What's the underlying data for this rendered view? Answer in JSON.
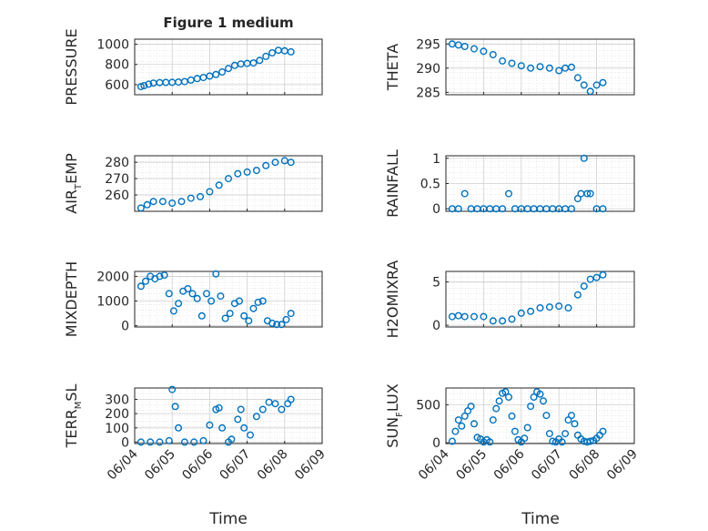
{
  "figure": {
    "title": "Figure 1 medium",
    "xlabel": "Time",
    "marker_color": "#0072bd",
    "axis_color": "#262626",
    "grid_color": "#dcdcdc"
  },
  "chart_data": [
    {
      "type": "scatter",
      "ylabel": "PRESSURE",
      "x_ticks": [],
      "y_ticks": [
        "1000",
        "800",
        "600"
      ],
      "ylim": [
        500,
        1050
      ],
      "grid": true,
      "x": [
        "06/04 04:00",
        "06/04 06:00",
        "06/04 09:00",
        "06/04 12:00",
        "06/04 16:00",
        "06/04 20:00",
        "06/05 00:00",
        "06/05 04:00",
        "06/05 08:00",
        "06/05 12:00",
        "06/05 16:00",
        "06/05 20:00",
        "06/06 00:00",
        "06/06 04:00",
        "06/06 08:00",
        "06/06 12:00",
        "06/06 16:00",
        "06/06 20:00",
        "06/07 00:00",
        "06/07 04:00",
        "06/07 08:00",
        "06/07 12:00",
        "06/07 16:00",
        "06/07 20:00",
        "06/08 00:00",
        "06/08 04:00"
      ],
      "values": [
        580,
        590,
        605,
        615,
        620,
        622,
        623,
        625,
        630,
        645,
        660,
        670,
        685,
        700,
        725,
        760,
        790,
        805,
        810,
        815,
        840,
        880,
        915,
        940,
        935,
        925
      ]
    },
    {
      "type": "scatter",
      "ylabel": "THETA",
      "x_ticks": [],
      "y_ticks": [
        "295",
        "290",
        "285"
      ],
      "ylim": [
        284.5,
        296
      ],
      "grid": true,
      "x": [
        "06/04 04:00",
        "06/04 08:00",
        "06/04 12:00",
        "06/04 18:00",
        "06/05 00:00",
        "06/05 06:00",
        "06/05 12:00",
        "06/05 18:00",
        "06/06 00:00",
        "06/06 06:00",
        "06/06 12:00",
        "06/06 18:00",
        "06/07 00:00",
        "06/07 04:00",
        "06/07 08:00",
        "06/07 12:00",
        "06/07 16:00",
        "06/07 20:00",
        "06/08 00:00",
        "06/08 04:00"
      ],
      "values": [
        295,
        294.8,
        294.5,
        294,
        293.5,
        292.8,
        291.5,
        291,
        290.5,
        290,
        290.3,
        290,
        289.5,
        290,
        290.2,
        288,
        286.5,
        285.2,
        286.5,
        287
      ]
    },
    {
      "type": "scatter",
      "ylabel": "AIR_TEMP",
      "x_ticks": [],
      "y_ticks": [
        "280",
        "270",
        "260"
      ],
      "ylim": [
        250,
        284
      ],
      "grid": true,
      "x": [
        "06/04 04:00",
        "06/04 08:00",
        "06/04 12:00",
        "06/04 18:00",
        "06/05 00:00",
        "06/05 06:00",
        "06/05 12:00",
        "06/05 18:00",
        "06/06 00:00",
        "06/06 06:00",
        "06/06 12:00",
        "06/06 18:00",
        "06/07 00:00",
        "06/07 06:00",
        "06/07 12:00",
        "06/07 18:00",
        "06/08 00:00",
        "06/08 04:00"
      ],
      "values": [
        252,
        254,
        256,
        256,
        255,
        256,
        258,
        259,
        262,
        266,
        270,
        273,
        274,
        275,
        278,
        280,
        281,
        280
      ]
    },
    {
      "type": "scatter",
      "ylabel": "RAINFALL",
      "x_ticks": [],
      "y_ticks": [
        "1",
        "0.5",
        "0"
      ],
      "ylim": [
        -0.05,
        1.05
      ],
      "grid": true,
      "x": [
        "06/04 04:00",
        "06/04 08:00",
        "06/04 12:00",
        "06/04 16:00",
        "06/04 20:00",
        "06/05 00:00",
        "06/05 04:00",
        "06/05 08:00",
        "06/05 12:00",
        "06/05 16:00",
        "06/05 20:00",
        "06/06 00:00",
        "06/06 04:00",
        "06/06 08:00",
        "06/06 12:00",
        "06/06 16:00",
        "06/06 20:00",
        "06/07 00:00",
        "06/07 04:00",
        "06/07 08:00",
        "06/07 12:00",
        "06/07 14:00",
        "06/07 16:00",
        "06/07 18:00",
        "06/07 20:00",
        "06/08 00:00",
        "06/08 04:00"
      ],
      "values": [
        0,
        0,
        0.3,
        0,
        0,
        0,
        0,
        0,
        0,
        0.3,
        0,
        0,
        0,
        0,
        0,
        0,
        0,
        0,
        0,
        0,
        0.2,
        0.3,
        1,
        0.3,
        0.3,
        0,
        0
      ]
    },
    {
      "type": "scatter",
      "ylabel": "MIXDEPTH",
      "x_ticks": [],
      "y_ticks": [
        "2000",
        "1000",
        "0"
      ],
      "ylim": [
        -50,
        2200
      ],
      "grid": true,
      "x": [
        "06/04 04:00",
        "06/04 07:00",
        "06/04 10:00",
        "06/04 13:00",
        "06/04 16:00",
        "06/04 19:00",
        "06/04 22:00",
        "06/05 01:00",
        "06/05 04:00",
        "06/05 07:00",
        "06/05 10:00",
        "06/05 13:00",
        "06/05 16:00",
        "06/05 19:00",
        "06/05 22:00",
        "06/06 01:00",
        "06/06 04:00",
        "06/06 07:00",
        "06/06 10:00",
        "06/06 13:00",
        "06/06 16:00",
        "06/06 19:00",
        "06/06 22:00",
        "06/07 01:00",
        "06/07 04:00",
        "06/07 07:00",
        "06/07 10:00",
        "06/07 13:00",
        "06/07 16:00",
        "06/07 19:00",
        "06/07 22:00",
        "06/08 01:00",
        "06/08 04:00"
      ],
      "values": [
        1600,
        1800,
        2000,
        1900,
        2000,
        2050,
        1300,
        600,
        900,
        1400,
        1500,
        1300,
        1100,
        400,
        1300,
        1000,
        2100,
        1200,
        300,
        500,
        900,
        1000,
        400,
        200,
        700,
        950,
        1000,
        200,
        100,
        50,
        50,
        250,
        500
      ]
    },
    {
      "type": "scatter",
      "ylabel": "H2OMIXRA",
      "x_ticks": [],
      "y_ticks": [
        "5",
        "0"
      ],
      "ylim": [
        -0.2,
        6.2
      ],
      "grid": true,
      "x": [
        "06/04 04:00",
        "06/04 08:00",
        "06/04 12:00",
        "06/04 18:00",
        "06/05 00:00",
        "06/05 06:00",
        "06/05 12:00",
        "06/05 18:00",
        "06/06 00:00",
        "06/06 06:00",
        "06/06 12:00",
        "06/06 18:00",
        "06/07 00:00",
        "06/07 06:00",
        "06/07 12:00",
        "06/07 16:00",
        "06/07 20:00",
        "06/08 00:00",
        "06/08 04:00"
      ],
      "values": [
        1,
        1.1,
        1,
        1,
        1,
        0.5,
        0.5,
        0.7,
        1.4,
        1.6,
        2,
        2.1,
        2.2,
        2,
        3.5,
        4.5,
        5.3,
        5.5,
        5.8
      ]
    },
    {
      "type": "scatter",
      "ylabel": "TERR_MSL",
      "x_ticks": [
        "06/04",
        "06/05",
        "06/06",
        "06/07",
        "06/08",
        "06/09"
      ],
      "y_ticks": [
        "300",
        "200",
        "100",
        "0"
      ],
      "ylim": [
        -10,
        380
      ],
      "grid": true,
      "x": [
        "06/04 04:00",
        "06/04 10:00",
        "06/04 16:00",
        "06/04 22:00",
        "06/05 00:00",
        "06/05 02:00",
        "06/05 04:00",
        "06/05 08:00",
        "06/05 14:00",
        "06/05 20:00",
        "06/06 00:00",
        "06/06 04:00",
        "06/06 06:00",
        "06/06 08:00",
        "06/06 12:00",
        "06/06 14:00",
        "06/06 18:00",
        "06/06 20:00",
        "06/06 22:00",
        "06/07 02:00",
        "06/07 06:00",
        "06/07 10:00",
        "06/07 14:00",
        "06/07 18:00",
        "06/07 22:00",
        "06/08 02:00",
        "06/08 04:00"
      ],
      "values": [
        0,
        0,
        0,
        10,
        370,
        250,
        100,
        0,
        0,
        10,
        120,
        230,
        240,
        100,
        0,
        20,
        160,
        230,
        100,
        50,
        180,
        230,
        280,
        270,
        230,
        270,
        300
      ]
    },
    {
      "type": "scatter",
      "ylabel": "SUN_FLUX",
      "x_ticks": [
        "06/04",
        "06/05",
        "06/06",
        "06/07",
        "06/08",
        "06/09"
      ],
      "y_ticks": [
        "500",
        "0"
      ],
      "ylim": [
        -10,
        720
      ],
      "grid": true,
      "x": [
        "06/04 04:00",
        "06/04 06:00",
        "06/04 08:00",
        "06/04 10:00",
        "06/04 12:00",
        "06/04 14:00",
        "06/04 16:00",
        "06/04 18:00",
        "06/04 20:00",
        "06/04 22:00",
        "06/05 00:00",
        "06/05 02:00",
        "06/05 04:00",
        "06/05 06:00",
        "06/05 08:00",
        "06/05 10:00",
        "06/05 12:00",
        "06/05 14:00",
        "06/05 16:00",
        "06/05 18:00",
        "06/05 20:00",
        "06/05 22:00",
        "06/06 00:00",
        "06/06 02:00",
        "06/06 04:00",
        "06/06 06:00",
        "06/06 08:00",
        "06/06 10:00",
        "06/06 12:00",
        "06/06 14:00",
        "06/06 16:00",
        "06/06 18:00",
        "06/06 20:00",
        "06/06 22:00",
        "06/07 00:00",
        "06/07 02:00",
        "06/07 04:00",
        "06/07 06:00",
        "06/07 08:00",
        "06/07 10:00",
        "06/07 12:00",
        "06/07 14:00",
        "06/07 16:00",
        "06/07 18:00",
        "06/07 20:00",
        "06/07 22:00",
        "06/08 00:00",
        "06/08 02:00",
        "06/08 04:00"
      ],
      "values": [
        20,
        150,
        300,
        220,
        350,
        420,
        480,
        250,
        70,
        50,
        10,
        40,
        10,
        300,
        450,
        550,
        650,
        670,
        600,
        350,
        150,
        40,
        10,
        60,
        200,
        480,
        600,
        670,
        640,
        550,
        360,
        120,
        20,
        10,
        50,
        10,
        120,
        300,
        360,
        250,
        100,
        50,
        20,
        10,
        20,
        30,
        60,
        100,
        150
      ]
    }
  ]
}
